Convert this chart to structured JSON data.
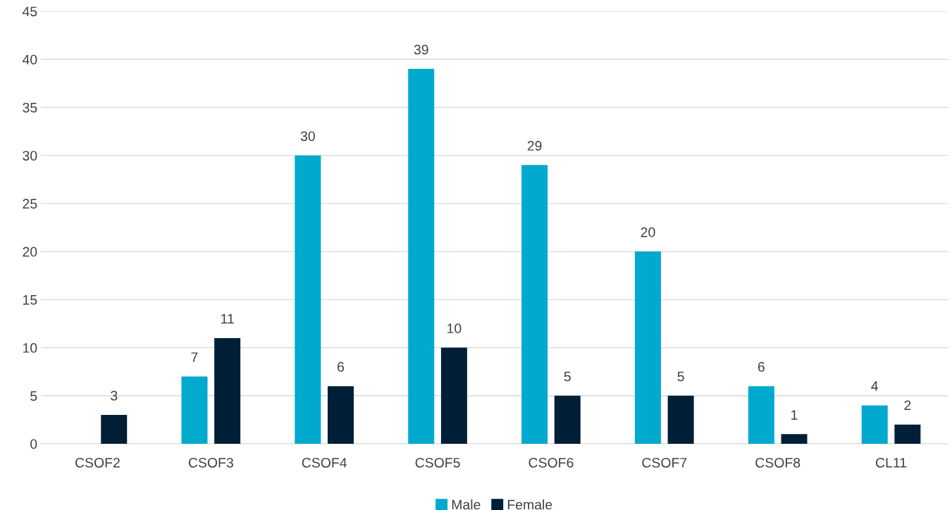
{
  "chart_data": {
    "type": "bar",
    "categories": [
      "CSOF2",
      "CSOF3",
      "CSOF4",
      "CSOF5",
      "CSOF6",
      "CSOF7",
      "CSOF8",
      "CL11"
    ],
    "series": [
      {
        "name": "Male",
        "color": "#00a9ce",
        "values": [
          null,
          7,
          30,
          39,
          29,
          20,
          6,
          4
        ]
      },
      {
        "name": "Female",
        "color": "#001f36",
        "values": [
          3,
          11,
          6,
          10,
          5,
          5,
          1,
          2
        ]
      }
    ],
    "ylim": [
      0,
      45
    ],
    "yticks": [
      0,
      5,
      10,
      15,
      20,
      25,
      30,
      35,
      40,
      45
    ],
    "grid": "y",
    "legend": "bottom",
    "data_labels": true
  }
}
